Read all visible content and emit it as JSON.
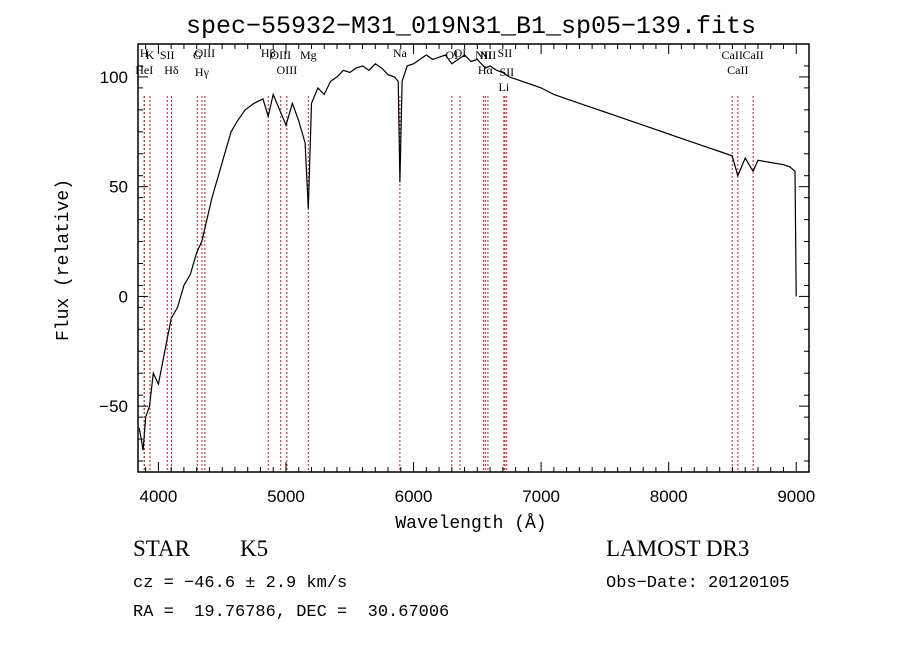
{
  "chart_data": {
    "type": "line",
    "title": "spec−55932−M31_019N31_B1_sp05−139.fits",
    "xlabel": "Wavelength (Å)",
    "ylabel": "Flux (relative)",
    "xlim": [
      3840,
      9100
    ],
    "ylim": [
      -80,
      115
    ],
    "xticks": [
      4000,
      5000,
      6000,
      7000,
      8000,
      9000
    ],
    "yticks": [
      -50,
      0,
      50,
      100
    ],
    "grid": false,
    "series": [
      {
        "name": "spectrum",
        "x": [
          3850,
          3880,
          3900,
          3930,
          3960,
          4000,
          4050,
          4100,
          4150,
          4200,
          4250,
          4300,
          4340,
          4380,
          4420,
          4470,
          4520,
          4570,
          4620,
          4680,
          4750,
          4820,
          4861,
          4900,
          4950,
          5000,
          5050,
          5100,
          5150,
          5175,
          5200,
          5250,
          5300,
          5350,
          5400,
          5450,
          5500,
          5550,
          5600,
          5650,
          5700,
          5750,
          5800,
          5850,
          5880,
          5893,
          5910,
          5950,
          6000,
          6050,
          6100,
          6150,
          6200,
          6250,
          6300,
          6350,
          6400,
          6450,
          6500,
          6563,
          6600,
          6650,
          6700,
          6750,
          6800,
          6900,
          7000,
          7100,
          7200,
          7300,
          7400,
          7500,
          7600,
          7700,
          7800,
          7900,
          8000,
          8100,
          8200,
          8300,
          8400,
          8498,
          8542,
          8600,
          8662,
          8700,
          8800,
          8900,
          8950,
          8990,
          9000
        ],
        "values": [
          -60,
          -70,
          -55,
          -50,
          -35,
          -40,
          -25,
          -10,
          -5,
          5,
          10,
          20,
          25,
          35,
          45,
          55,
          65,
          75,
          80,
          85,
          88,
          90,
          82,
          92,
          85,
          78,
          88,
          80,
          70,
          40,
          88,
          95,
          92,
          98,
          100,
          103,
          102,
          104,
          105,
          103,
          106,
          104,
          101,
          100,
          98,
          52,
          98,
          105,
          106,
          108,
          110,
          108,
          109,
          110,
          106,
          108,
          110,
          107,
          108,
          104,
          105,
          103,
          102,
          100,
          99,
          97,
          95,
          92,
          90,
          88,
          86,
          84,
          82,
          80,
          78,
          76,
          74,
          72,
          70,
          68,
          66,
          64,
          55,
          63,
          57,
          62,
          61,
          60,
          59,
          57,
          0
        ]
      }
    ],
    "line_marks": [
      {
        "label": "H",
        "wavelength": 3889
      },
      {
        "label": "K",
        "wavelength": 3934
      },
      {
        "label": "HeI",
        "wavelength": 3889
      },
      {
        "label": "SII",
        "wavelength": 4069
      },
      {
        "label": "Hδ",
        "wavelength": 4102
      },
      {
        "label": "G",
        "wavelength": 4305
      },
      {
        "label": "OIII",
        "wavelength": 4364
      },
      {
        "label": "Hγ",
        "wavelength": 4341
      },
      {
        "label": "Hβ",
        "wavelength": 4861
      },
      {
        "label": "OIII",
        "wavelength": 4959
      },
      {
        "label": "OIII",
        "wavelength": 5007
      },
      {
        "label": "Mg",
        "wavelength": 5175
      },
      {
        "label": "Na",
        "wavelength": 5893
      },
      {
        "label": "OI",
        "wavelength": 6300
      },
      {
        "label": "OI",
        "wavelength": 6364
      },
      {
        "label": "NII",
        "wavelength": 6548
      },
      {
        "label": "Hα",
        "wavelength": 6563
      },
      {
        "label": "NII",
        "wavelength": 6583
      },
      {
        "label": "SII",
        "wavelength": 6716
      },
      {
        "label": "SII",
        "wavelength": 6731
      },
      {
        "label": "Li",
        "wavelength": 6708
      },
      {
        "label": "CaII",
        "wavelength": 8498
      },
      {
        "label": "CaII",
        "wavelength": 8542
      },
      {
        "label": "CaII",
        "wavelength": 8662
      }
    ],
    "colors": {
      "spectrum": "#000000",
      "line_marks": "#b22222",
      "axes": "#000000"
    }
  },
  "info": {
    "object_class": "STAR",
    "subclass": "K5",
    "survey": "LAMOST DR3",
    "cz_text": "cz = −46.6 ± 2.9 km/s",
    "obs_date_text": "Obs−Date: 20120105",
    "coords_text": "RA =  19.76786, DEC =  30.67006"
  }
}
